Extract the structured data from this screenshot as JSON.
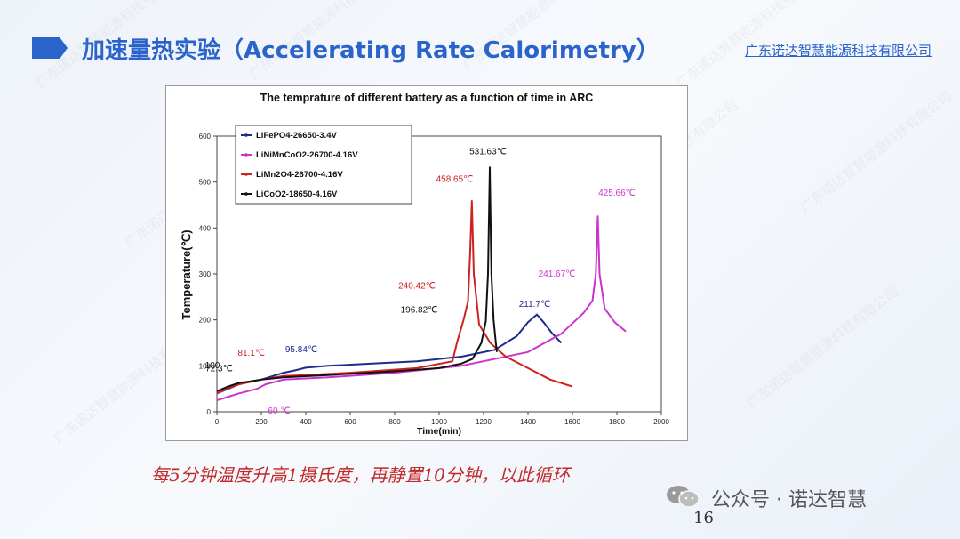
{
  "slide": {
    "title": "加速量热实验（Accelerating Rate Calorimetry）",
    "company": "广东诺达智慧能源科技有限公司",
    "caption": "每5分钟温度升高1摄氏度，再静置10分钟，以此循环",
    "wechat": "公众号 · 诺达智慧",
    "page_number": "16",
    "watermark_text": "广东诺达智慧能源科技有限公司"
  },
  "chart_data": {
    "type": "line",
    "title": "The temprature of different battery as a function of time in ARC",
    "xlabel": "Time(min)",
    "ylabel": "Temperature(℃)",
    "xlim": [
      0,
      2000
    ],
    "ylim": [
      0,
      600
    ],
    "xticks": [
      0,
      200,
      400,
      600,
      800,
      1000,
      1200,
      1400,
      1600,
      1800,
      2000
    ],
    "yticks": [
      0,
      100,
      200,
      300,
      400,
      500,
      600
    ],
    "grid": false,
    "legend_position": "top-left",
    "series": [
      {
        "name": "LiFePO4-26650-3.4V",
        "color": "#1f2a8c",
        "points": [
          [
            0,
            40
          ],
          [
            50,
            50
          ],
          [
            100,
            60
          ],
          [
            150,
            66
          ],
          [
            200,
            70
          ],
          [
            300,
            85
          ],
          [
            350,
            90
          ],
          [
            400,
            96
          ],
          [
            500,
            100
          ],
          [
            700,
            105
          ],
          [
            900,
            110
          ],
          [
            1100,
            120
          ],
          [
            1250,
            135
          ],
          [
            1350,
            165
          ],
          [
            1400,
            195
          ],
          [
            1440,
            211.7
          ],
          [
            1470,
            195
          ],
          [
            1510,
            170
          ],
          [
            1550,
            150
          ]
        ]
      },
      {
        "name": "LiNiMnCoO2-26700-4.16V",
        "color": "#cc33cc",
        "points": [
          [
            0,
            25
          ],
          [
            100,
            40
          ],
          [
            180,
            50
          ],
          [
            220,
            60
          ],
          [
            300,
            70
          ],
          [
            500,
            75
          ],
          [
            800,
            85
          ],
          [
            1100,
            100
          ],
          [
            1400,
            130
          ],
          [
            1550,
            170
          ],
          [
            1650,
            215
          ],
          [
            1690,
            241.67
          ],
          [
            1705,
            300
          ],
          [
            1714,
            425.66
          ],
          [
            1722,
            300
          ],
          [
            1745,
            225
          ],
          [
            1790,
            195
          ],
          [
            1840,
            175
          ]
        ]
      },
      {
        "name": "LiMn2O4-26700-4.16V",
        "color": "#cc2222",
        "points": [
          [
            0,
            40
          ],
          [
            50,
            52
          ],
          [
            100,
            60
          ],
          [
            200,
            70
          ],
          [
            300,
            78
          ],
          [
            400,
            80
          ],
          [
            600,
            85
          ],
          [
            900,
            95
          ],
          [
            1060,
            110
          ],
          [
            1080,
            150
          ],
          [
            1110,
            200
          ],
          [
            1130,
            240.42
          ],
          [
            1140,
            350
          ],
          [
            1147,
            458.65
          ],
          [
            1156,
            300
          ],
          [
            1180,
            190
          ],
          [
            1230,
            150
          ],
          [
            1300,
            120
          ],
          [
            1400,
            95
          ],
          [
            1500,
            70
          ],
          [
            1600,
            55
          ]
        ]
      },
      {
        "name": "LiCoO2-18650-4.16V",
        "color": "#111111",
        "points": [
          [
            0,
            45
          ],
          [
            50,
            55
          ],
          [
            100,
            63
          ],
          [
            150,
            66
          ],
          [
            200,
            70
          ],
          [
            300,
            75
          ],
          [
            500,
            80
          ],
          [
            800,
            88
          ],
          [
            1000,
            95
          ],
          [
            1100,
            105
          ],
          [
            1150,
            115
          ],
          [
            1190,
            150
          ],
          [
            1210,
            196.82
          ],
          [
            1220,
            300
          ],
          [
            1228,
            531.63
          ],
          [
            1235,
            300
          ],
          [
            1245,
            200
          ],
          [
            1255,
            150
          ],
          [
            1260,
            130
          ]
        ]
      }
    ],
    "annotations": [
      {
        "text": "531.63℃",
        "x": 1220,
        "y": 560,
        "color": "#111111"
      },
      {
        "text": "458.65℃",
        "x": 1070,
        "y": 500,
        "color": "#cc2222"
      },
      {
        "text": "425.66℃",
        "x": 1800,
        "y": 470,
        "color": "#cc33cc"
      },
      {
        "text": "240.42℃",
        "x": 900,
        "y": 268,
        "color": "#cc2222"
      },
      {
        "text": "241.67℃",
        "x": 1530,
        "y": 294,
        "color": "#cc33cc"
      },
      {
        "text": "196.82℃",
        "x": 910,
        "y": 216,
        "color": "#111111"
      },
      {
        "text": "211.7℃",
        "x": 1430,
        "y": 228,
        "color": "#1f2a8c"
      },
      {
        "text": "95.84℃",
        "x": 380,
        "y": 130,
        "color": "#1f2a8c"
      },
      {
        "text": "81.1℃",
        "x": 155,
        "y": 122,
        "color": "#cc2222"
      },
      {
        "text": "72.3℃",
        "x": 10,
        "y": 88,
        "color": "#111111"
      },
      {
        "text": "60 ℃",
        "x": 280,
        "y": -4,
        "color": "#cc33cc"
      },
      {
        "text": "100",
        "x": -20,
        "y": 95,
        "color": "#111111"
      }
    ]
  }
}
